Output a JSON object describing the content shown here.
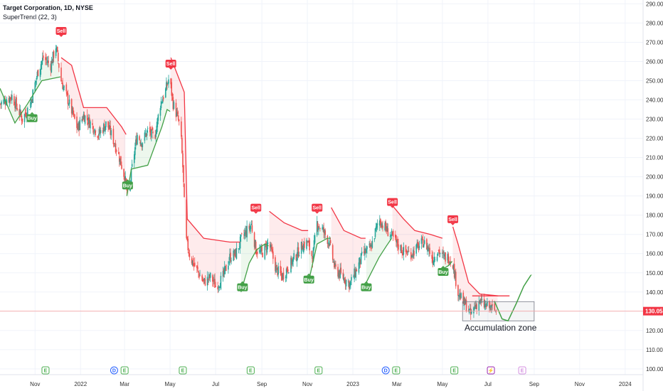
{
  "header": {
    "title": "Target Corporation, 1D, NYSE",
    "indicator": "SuperTrend (22, 3)"
  },
  "colors": {
    "up": "#26a69a",
    "down": "#ef5350",
    "supertrend_up": "#43a047",
    "supertrend_down": "#f23645",
    "price_line": "#f7a8a8",
    "axis_text": "#333333"
  },
  "chart_data": {
    "type": "candlestick",
    "title": "Target Corporation, 1D, NYSE",
    "indicator": "SuperTrend (22, 3)",
    "y_axis": {
      "side": "right",
      "ylim": [
        97,
        292
      ],
      "ticks": [
        "100.00",
        "110.00",
        "120.00",
        "130.00",
        "140.00",
        "150.00",
        "160.00",
        "170.00",
        "180.00",
        "190.00",
        "200.00",
        "210.00",
        "220.00",
        "230.00",
        "240.00",
        "250.00",
        "260.00",
        "270.00",
        "280.00",
        "290.00"
      ],
      "tick_values": [
        100,
        110,
        120,
        130,
        140,
        150,
        160,
        170,
        180,
        190,
        200,
        210,
        220,
        230,
        240,
        250,
        260,
        270,
        280,
        290
      ]
    },
    "x_axis": {
      "labels": [
        "Nov",
        "2022",
        "Mar",
        "May",
        "Jul",
        "Sep",
        "Nov",
        "2023",
        "Mar",
        "May",
        "Jul",
        "Sep",
        "Nov",
        "2024"
      ],
      "label_dates": [
        "2021-11-01",
        "2022-01-01",
        "2022-03-01",
        "2022-05-01",
        "2022-07-01",
        "2022-09-01",
        "2022-11-01",
        "2023-01-01",
        "2023-03-01",
        "2023-05-01",
        "2023-07-01",
        "2023-09-01",
        "2023-11-01",
        "2024-01-01"
      ],
      "start": "2021-09-15",
      "end": "2024-01-25"
    },
    "current_price": {
      "value": 130.05,
      "label": "130.05"
    },
    "price_path": [
      [
        "2021-09-15",
        238
      ],
      [
        "2021-10-01",
        242
      ],
      [
        "2021-10-15",
        230
      ],
      [
        "2021-10-25",
        237
      ],
      [
        "2021-11-05",
        255
      ],
      [
        "2021-11-12",
        262
      ],
      [
        "2021-11-22",
        258
      ],
      [
        "2021-11-29",
        268
      ],
      [
        "2021-12-06",
        250
      ],
      [
        "2021-12-15",
        240
      ],
      [
        "2021-12-28",
        225
      ],
      [
        "2022-01-05",
        232
      ],
      [
        "2022-01-14",
        228
      ],
      [
        "2022-01-25",
        222
      ],
      [
        "2022-02-05",
        228
      ],
      [
        "2022-02-15",
        218
      ],
      [
        "2022-02-22",
        210
      ],
      [
        "2022-03-01",
        200
      ],
      [
        "2022-03-06",
        188
      ],
      [
        "2022-03-12",
        208
      ],
      [
        "2022-03-18",
        222
      ],
      [
        "2022-03-24",
        218
      ],
      [
        "2022-04-01",
        224
      ],
      [
        "2022-04-10",
        220
      ],
      [
        "2022-04-18",
        238
      ],
      [
        "2022-04-25",
        245
      ],
      [
        "2022-04-30",
        252
      ],
      [
        "2022-05-05",
        238
      ],
      [
        "2022-05-10",
        232
      ],
      [
        "2022-05-15",
        225
      ],
      [
        "2022-05-18",
        205
      ],
      [
        "2022-05-22",
        168
      ],
      [
        "2022-05-28",
        158
      ],
      [
        "2022-06-05",
        152
      ],
      [
        "2022-06-15",
        145
      ],
      [
        "2022-06-25",
        148
      ],
      [
        "2022-07-01",
        143
      ],
      [
        "2022-07-10",
        147
      ],
      [
        "2022-07-20",
        158
      ],
      [
        "2022-07-28",
        160
      ],
      [
        "2022-08-05",
        168
      ],
      [
        "2022-08-12",
        172
      ],
      [
        "2022-08-18",
        175
      ],
      [
        "2022-08-24",
        162
      ],
      [
        "2022-09-01",
        160
      ],
      [
        "2022-09-10",
        166
      ],
      [
        "2022-09-20",
        152
      ],
      [
        "2022-09-28",
        148
      ],
      [
        "2022-10-05",
        152
      ],
      [
        "2022-10-15",
        158
      ],
      [
        "2022-10-25",
        164
      ],
      [
        "2022-11-01",
        166
      ],
      [
        "2022-11-08",
        158
      ],
      [
        "2022-11-14",
        176
      ],
      [
        "2022-11-22",
        172
      ],
      [
        "2022-11-30",
        166
      ],
      [
        "2022-12-08",
        152
      ],
      [
        "2022-12-18",
        148
      ],
      [
        "2022-12-28",
        144
      ],
      [
        "2023-01-05",
        151
      ],
      [
        "2023-01-15",
        160
      ],
      [
        "2023-01-25",
        163
      ],
      [
        "2023-02-05",
        178
      ],
      [
        "2023-02-12",
        174
      ],
      [
        "2023-02-20",
        170
      ],
      [
        "2023-03-01",
        165
      ],
      [
        "2023-03-10",
        161
      ],
      [
        "2023-03-20",
        160
      ],
      [
        "2023-03-28",
        163
      ],
      [
        "2023-04-05",
        166
      ],
      [
        "2023-04-12",
        163
      ],
      [
        "2023-04-18",
        157
      ],
      [
        "2023-04-25",
        162
      ],
      [
        "2023-05-02",
        158
      ],
      [
        "2023-05-10",
        158
      ],
      [
        "2023-05-15",
        155
      ],
      [
        "2023-05-18",
        148
      ],
      [
        "2023-05-22",
        140
      ],
      [
        "2023-05-28",
        135
      ],
      [
        "2023-06-02",
        133
      ],
      [
        "2023-06-08",
        128
      ],
      [
        "2023-06-14",
        133
      ],
      [
        "2023-06-20",
        135
      ],
      [
        "2023-06-26",
        133
      ],
      [
        "2023-07-03",
        132
      ],
      [
        "2023-07-08",
        131
      ],
      [
        "2023-07-12",
        130.05
      ]
    ],
    "supertrend": [
      {
        "trend": "up",
        "points": [
          [
            "2021-09-15",
            246
          ],
          [
            "2021-10-05",
            228
          ],
          [
            "2021-10-22",
            238
          ],
          [
            "2021-11-10",
            250
          ],
          [
            "2021-12-05",
            252
          ]
        ]
      },
      {
        "trend": "down",
        "points": [
          [
            "2021-12-06",
            262
          ],
          [
            "2021-12-20",
            258
          ],
          [
            "2022-01-05",
            236
          ],
          [
            "2022-02-05",
            236
          ],
          [
            "2022-02-25",
            226
          ],
          [
            "2022-03-03",
            222
          ]
        ]
      },
      {
        "trend": "up",
        "points": [
          [
            "2022-03-04",
            190
          ],
          [
            "2022-03-10",
            204
          ],
          [
            "2022-04-01",
            206
          ],
          [
            "2022-04-20",
            226
          ],
          [
            "2022-04-27",
            235
          ],
          [
            "2022-05-01",
            234
          ]
        ]
      },
      {
        "trend": "down",
        "points": [
          [
            "2022-05-02",
            262
          ],
          [
            "2022-05-20",
            244
          ],
          [
            "2022-05-24",
            178
          ],
          [
            "2022-06-15",
            168
          ],
          [
            "2022-07-20",
            166
          ],
          [
            "2022-08-03",
            166
          ]
        ]
      },
      {
        "trend": "up",
        "points": [
          [
            "2022-08-04",
            140
          ],
          [
            "2022-08-15",
            155
          ],
          [
            "2022-08-25",
            162
          ],
          [
            "2022-09-05",
            165
          ],
          [
            "2022-09-10",
            164
          ]
        ]
      },
      {
        "trend": "down",
        "points": [
          [
            "2022-09-11",
            182
          ],
          [
            "2022-10-01",
            176
          ],
          [
            "2022-10-25",
            172
          ],
          [
            "2022-11-02",
            172
          ]
        ]
      },
      {
        "trend": "up",
        "points": [
          [
            "2022-11-03",
            146
          ],
          [
            "2022-11-14",
            165
          ],
          [
            "2022-11-28",
            168
          ],
          [
            "2022-12-02",
            168
          ]
        ]
      },
      {
        "trend": "down",
        "points": [
          [
            "2022-12-03",
            184
          ],
          [
            "2022-12-20",
            172
          ],
          [
            "2023-01-12",
            168
          ],
          [
            "2023-01-18",
            168
          ]
        ]
      },
      {
        "trend": "up",
        "points": [
          [
            "2023-01-19",
            145
          ],
          [
            "2023-02-05",
            158
          ],
          [
            "2023-02-15",
            164
          ],
          [
            "2023-02-22",
            168
          ]
        ]
      },
      {
        "trend": "down",
        "points": [
          [
            "2023-02-23",
            185
          ],
          [
            "2023-03-10",
            178
          ],
          [
            "2023-03-25",
            172
          ],
          [
            "2023-04-15",
            170
          ],
          [
            "2023-05-01",
            168
          ]
        ]
      },
      {
        "trend": "up",
        "points": [
          [
            "2023-05-02",
            152
          ],
          [
            "2023-05-10",
            154
          ],
          [
            "2023-05-14",
            156
          ]
        ]
      },
      {
        "trend": "down",
        "points": [
          [
            "2023-05-15",
            174
          ],
          [
            "2023-05-22",
            165
          ],
          [
            "2023-06-05",
            145
          ],
          [
            "2023-06-20",
            139
          ],
          [
            "2023-07-15",
            138
          ]
        ]
      }
    ],
    "signals": [
      {
        "type": "Buy",
        "date": "2021-10-28",
        "price": 234
      },
      {
        "type": "Sell",
        "date": "2021-12-06",
        "price": 272
      },
      {
        "type": "Buy",
        "date": "2022-03-05",
        "price": 199
      },
      {
        "type": "Sell",
        "date": "2022-05-02",
        "price": 255
      },
      {
        "type": "Sell",
        "date": "2022-08-24",
        "price": 180
      },
      {
        "type": "Buy",
        "date": "2022-08-06",
        "price": 146
      },
      {
        "type": "Buy",
        "date": "2022-11-03",
        "price": 150
      },
      {
        "type": "Sell",
        "date": "2022-11-14",
        "price": 180
      },
      {
        "type": "Buy",
        "date": "2023-01-19",
        "price": 146
      },
      {
        "type": "Sell",
        "date": "2023-02-23",
        "price": 183
      },
      {
        "type": "Buy",
        "date": "2023-05-02",
        "price": 154
      },
      {
        "type": "Sell",
        "date": "2023-05-15",
        "price": 174
      }
    ],
    "projection": {
      "points": [
        [
          "2023-07-10",
          135
        ],
        [
          "2023-07-20",
          126
        ],
        [
          "2023-07-28",
          125
        ],
        [
          "2023-08-08",
          134
        ],
        [
          "2023-08-18",
          143
        ],
        [
          "2023-08-28",
          149
        ]
      ]
    },
    "accumulation_box": {
      "from": "2023-05-28",
      "to": "2023-09-01",
      "low": 125,
      "high": 135
    },
    "accumulation_cap": {
      "from": "2023-06-10",
      "to": "2023-07-30",
      "price": 138
    },
    "annotations": [
      {
        "text": "Accumulation zone",
        "date": "2023-07-18",
        "price": 121.5
      }
    ],
    "events": [
      {
        "kind": "E",
        "date": "2021-11-15"
      },
      {
        "kind": "D",
        "date": "2022-02-15"
      },
      {
        "kind": "E",
        "date": "2022-03-01"
      },
      {
        "kind": "E",
        "date": "2022-05-18"
      },
      {
        "kind": "E",
        "date": "2022-08-17"
      },
      {
        "kind": "E",
        "date": "2022-11-16"
      },
      {
        "kind": "D",
        "date": "2023-02-14"
      },
      {
        "kind": "E",
        "date": "2023-02-28"
      },
      {
        "kind": "E",
        "date": "2023-05-17"
      },
      {
        "kind": "S",
        "date": "2023-07-05"
      },
      {
        "kind": "E",
        "date": "2023-08-16"
      }
    ]
  }
}
